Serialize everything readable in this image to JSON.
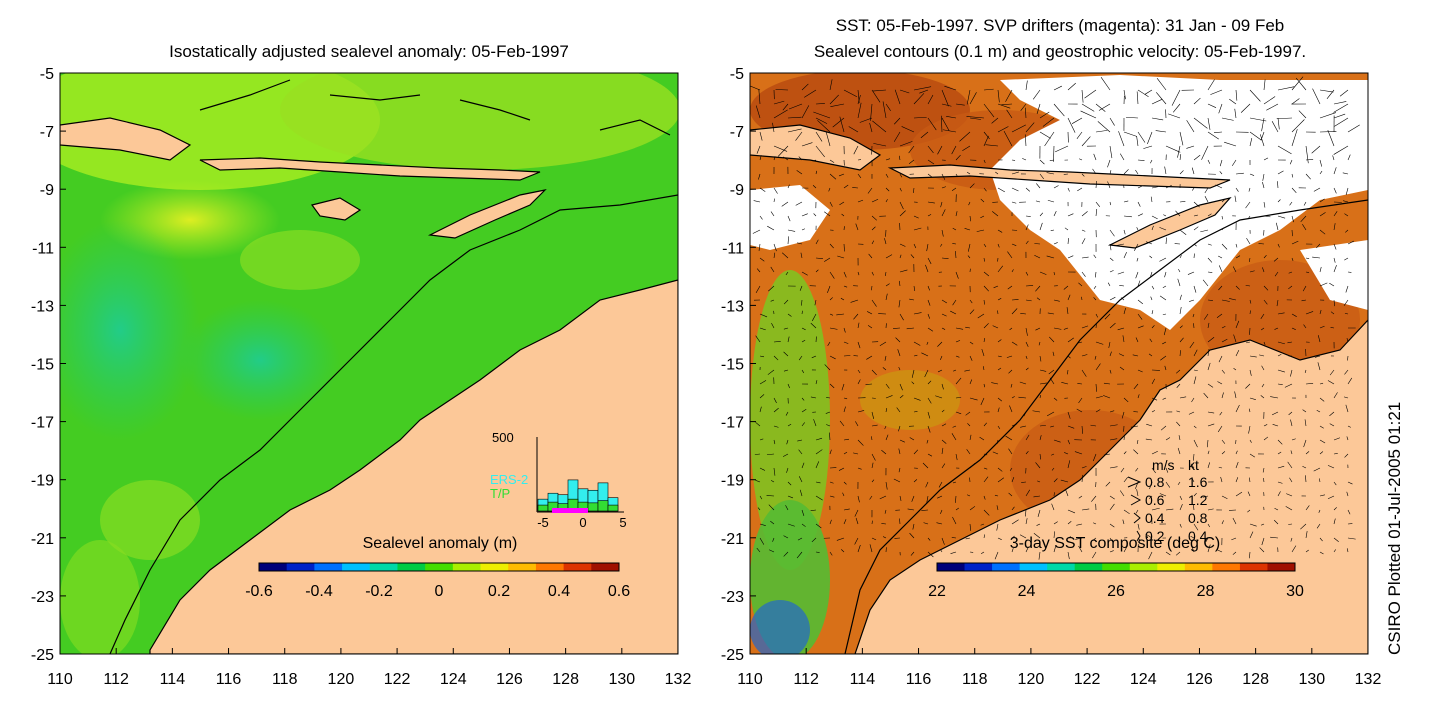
{
  "left_panel": {
    "title": "Isostatically adjusted sealevel anomaly: 05-Feb-1997",
    "colorbar": {
      "label": "Sealevel anomaly (m)",
      "ticks": [
        "-0.6",
        "-0.4",
        "-0.2",
        "0",
        "0.2",
        "0.4",
        "0.6"
      ],
      "colors": [
        "#00007a",
        "#0022c8",
        "#0070ff",
        "#00c0ff",
        "#00d8a8",
        "#00cc44",
        "#44dd00",
        "#aaee00",
        "#eeee00",
        "#ffbb00",
        "#ff7700",
        "#dd3300",
        "#a01000"
      ]
    },
    "histogram": {
      "max_label": "500",
      "x_ticks": [
        "-5",
        "0",
        "5"
      ],
      "series_labels": [
        "ERS-2",
        "T/P"
      ],
      "series_colors": [
        "#33eeee",
        "#33dd33"
      ],
      "ers2_counts": [
        80,
        120,
        110,
        210,
        150,
        140,
        190,
        90
      ],
      "tp_counts": [
        40,
        60,
        50,
        80,
        60,
        55,
        70,
        40
      ]
    }
  },
  "right_panel": {
    "title_line1": "SST: 05-Feb-1997. SVP drifters (magenta): 31 Jan - 09 Feb",
    "title_line2": "Sealevel contours (0.1 m) and geostrophic velocity: 05-Feb-1997.",
    "colorbar": {
      "label": "3-day SST composite (deg C)",
      "ticks": [
        "22",
        "24",
        "26",
        "28",
        "30"
      ],
      "colors": [
        "#00007a",
        "#0022c8",
        "#0070ff",
        "#00c0ff",
        "#00d8a8",
        "#00cc44",
        "#44dd00",
        "#aaee00",
        "#eeee00",
        "#ffbb00",
        "#ff7700",
        "#dd3300",
        "#a01000"
      ]
    },
    "velocity_key": {
      "header": [
        "m/s",
        "kt"
      ],
      "rows": [
        [
          "0.8",
          "1.6"
        ],
        [
          "0.6",
          "1.2"
        ],
        [
          "0.4",
          "0.8"
        ],
        [
          "0.2",
          "0.4"
        ]
      ]
    }
  },
  "axes": {
    "y_ticks": [
      "-5",
      "-7",
      "-9",
      "-11",
      "-13",
      "-15",
      "-17",
      "-19",
      "-21",
      "-23",
      "-25"
    ],
    "x_ticks": [
      "110",
      "112",
      "114",
      "116",
      "118",
      "120",
      "122",
      "124",
      "126",
      "128",
      "130",
      "132"
    ]
  },
  "colors": {
    "land": "#fcc898",
    "ocean_green": "#33cc22",
    "sst_orange": "#d86a10",
    "cloud": "#ffffff"
  },
  "side_note": "CSIRO Plotted 01-Jul-2005 01:21"
}
